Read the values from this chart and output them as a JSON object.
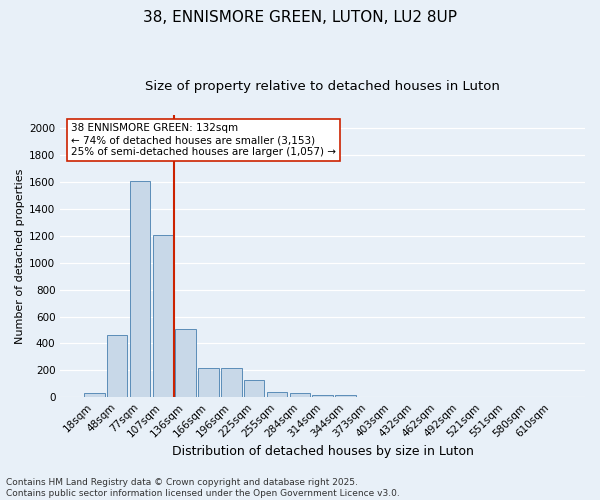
{
  "title1": "38, ENNISMORE GREEN, LUTON, LU2 8UP",
  "title2": "Size of property relative to detached houses in Luton",
  "xlabel": "Distribution of detached houses by size in Luton",
  "ylabel": "Number of detached properties",
  "categories": [
    "18sqm",
    "48sqm",
    "77sqm",
    "107sqm",
    "136sqm",
    "166sqm",
    "196sqm",
    "225sqm",
    "255sqm",
    "284sqm",
    "314sqm",
    "344sqm",
    "373sqm",
    "403sqm",
    "432sqm",
    "462sqm",
    "492sqm",
    "521sqm",
    "551sqm",
    "580sqm",
    "610sqm"
  ],
  "values": [
    30,
    465,
    1610,
    1210,
    510,
    215,
    215,
    125,
    40,
    30,
    20,
    20,
    0,
    0,
    0,
    0,
    0,
    0,
    0,
    0,
    0
  ],
  "bar_color": "#c8d8e8",
  "bar_edge_color": "#5b8db8",
  "vline_color": "#cc2200",
  "annotation_text": "38 ENNISMORE GREEN: 132sqm\n← 74% of detached houses are smaller (3,153)\n25% of semi-detached houses are larger (1,057) →",
  "annotation_box_color": "#ffffff",
  "annotation_box_edge_color": "#cc2200",
  "ylim": [
    0,
    2100
  ],
  "yticks": [
    0,
    200,
    400,
    600,
    800,
    1000,
    1200,
    1400,
    1600,
    1800,
    2000
  ],
  "bg_color": "#e8f0f8",
  "grid_color": "#ffffff",
  "footer_line1": "Contains HM Land Registry data © Crown copyright and database right 2025.",
  "footer_line2": "Contains public sector information licensed under the Open Government Licence v3.0.",
  "title1_fontsize": 11,
  "title2_fontsize": 9.5,
  "xlabel_fontsize": 9,
  "ylabel_fontsize": 8,
  "tick_fontsize": 7.5,
  "annotation_fontsize": 7.5,
  "footer_fontsize": 6.5
}
